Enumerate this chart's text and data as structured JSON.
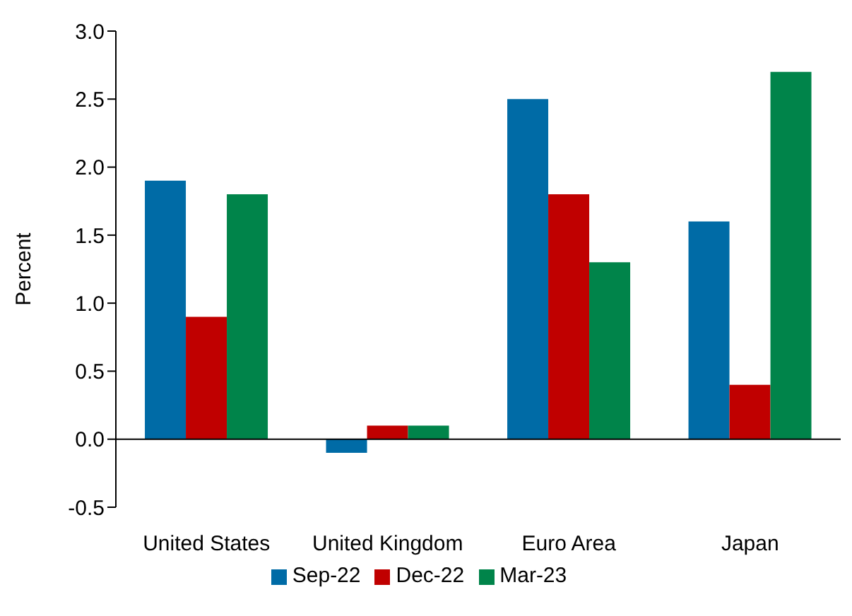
{
  "chart_data": {
    "type": "bar",
    "ylabel": "Percent",
    "categories": [
      "United States",
      "United Kingdom",
      "Euro Area",
      "Japan"
    ],
    "series": [
      {
        "name": "Sep-22",
        "color": "#006ba6",
        "values": [
          1.9,
          -0.1,
          2.5,
          1.6
        ]
      },
      {
        "name": "Dec-22",
        "color": "#c00000",
        "values": [
          0.9,
          0.1,
          1.8,
          0.4
        ]
      },
      {
        "name": "Mar-23",
        "color": "#00844a",
        "values": [
          1.8,
          0.1,
          1.3,
          2.7
        ]
      }
    ],
    "ylim": [
      -0.5,
      3.0
    ],
    "yticks": [
      {
        "value": -0.5,
        "label": "-0.5"
      },
      {
        "value": 0,
        "label": "0.0"
      },
      {
        "value": 0.5,
        "label": "0.5"
      },
      {
        "value": 1,
        "label": "1.0"
      },
      {
        "value": 1.5,
        "label": "1.5"
      },
      {
        "value": 2,
        "label": "2.0"
      },
      {
        "value": 2.5,
        "label": "2.5"
      },
      {
        "value": 3,
        "label": "3.0"
      }
    ],
    "ref_lines": [
      {
        "axis": "y",
        "value": 0,
        "color": "#000000"
      }
    ],
    "legend": "bottom"
  }
}
